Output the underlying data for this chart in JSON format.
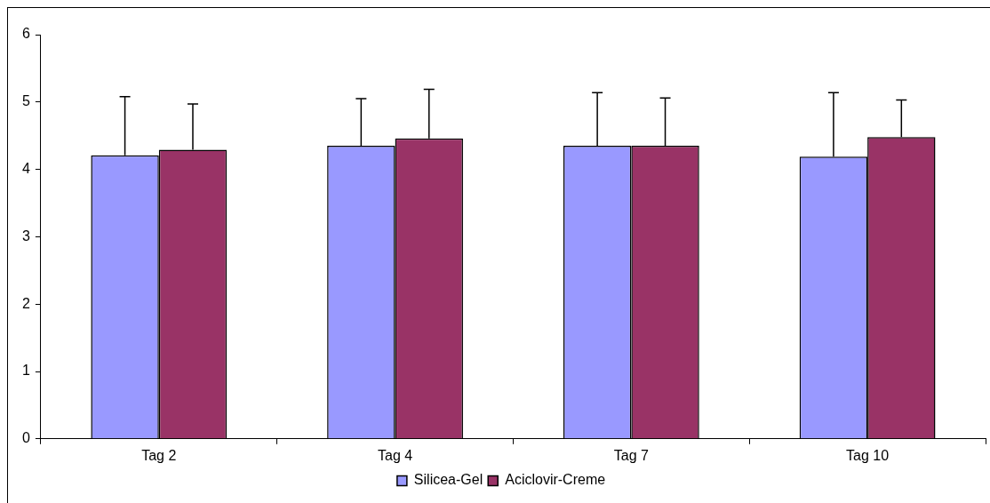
{
  "chart_data": {
    "type": "bar",
    "categories": [
      "Tag 2",
      "Tag 4",
      "Tag 7",
      "Tag 10"
    ],
    "series": [
      {
        "name": "Silicea-Gel",
        "color": "#9999ff",
        "values": [
          4.21,
          4.35,
          4.35,
          4.19
        ],
        "errors": [
          [
            4.21,
            5.08
          ],
          [
            4.35,
            5.05
          ],
          [
            4.35,
            5.14
          ],
          [
            4.19,
            5.14
          ]
        ]
      },
      {
        "name": "Aciclovir-Creme",
        "color": "#993366",
        "values": [
          4.29,
          4.46,
          4.35,
          4.48
        ],
        "errors": [
          [
            4.29,
            4.97
          ],
          [
            4.46,
            5.19
          ],
          [
            4.35,
            5.06
          ],
          [
            4.48,
            5.03
          ]
        ]
      }
    ],
    "ylim": [
      0,
      6
    ],
    "yticks": [
      0,
      1,
      2,
      3,
      4,
      5,
      6
    ],
    "grid": false,
    "legend": "bottom"
  }
}
